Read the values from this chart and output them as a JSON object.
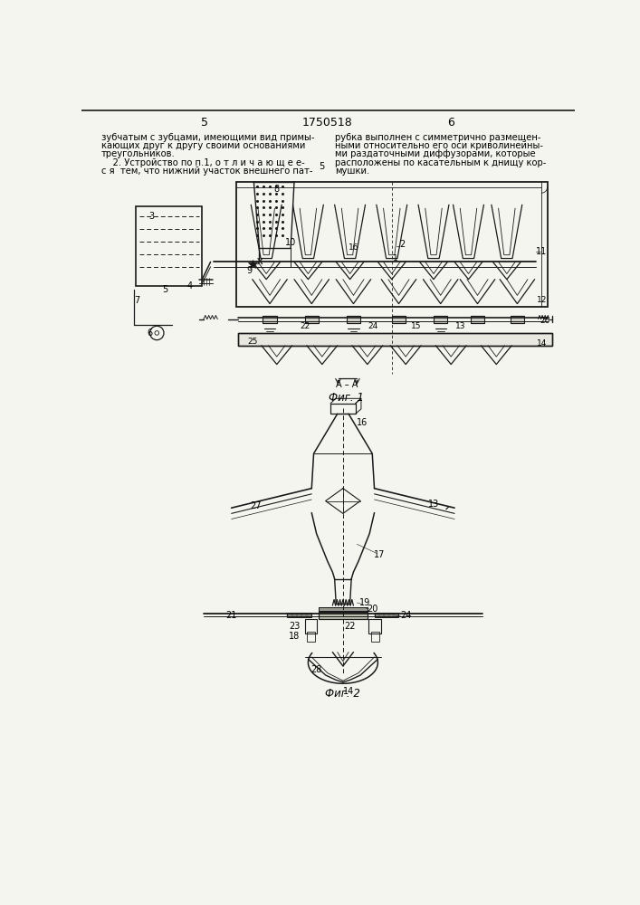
{
  "page_number_left": "5",
  "page_number_center": "1750518",
  "page_number_right": "6",
  "fig1_label": "Фиг. 1",
  "fig2_label": "Фиг. 2",
  "section_label": "А – А",
  "bg_color": "#f5f5f0",
  "line_color": "#1a1a1a",
  "text_color": "#000000"
}
